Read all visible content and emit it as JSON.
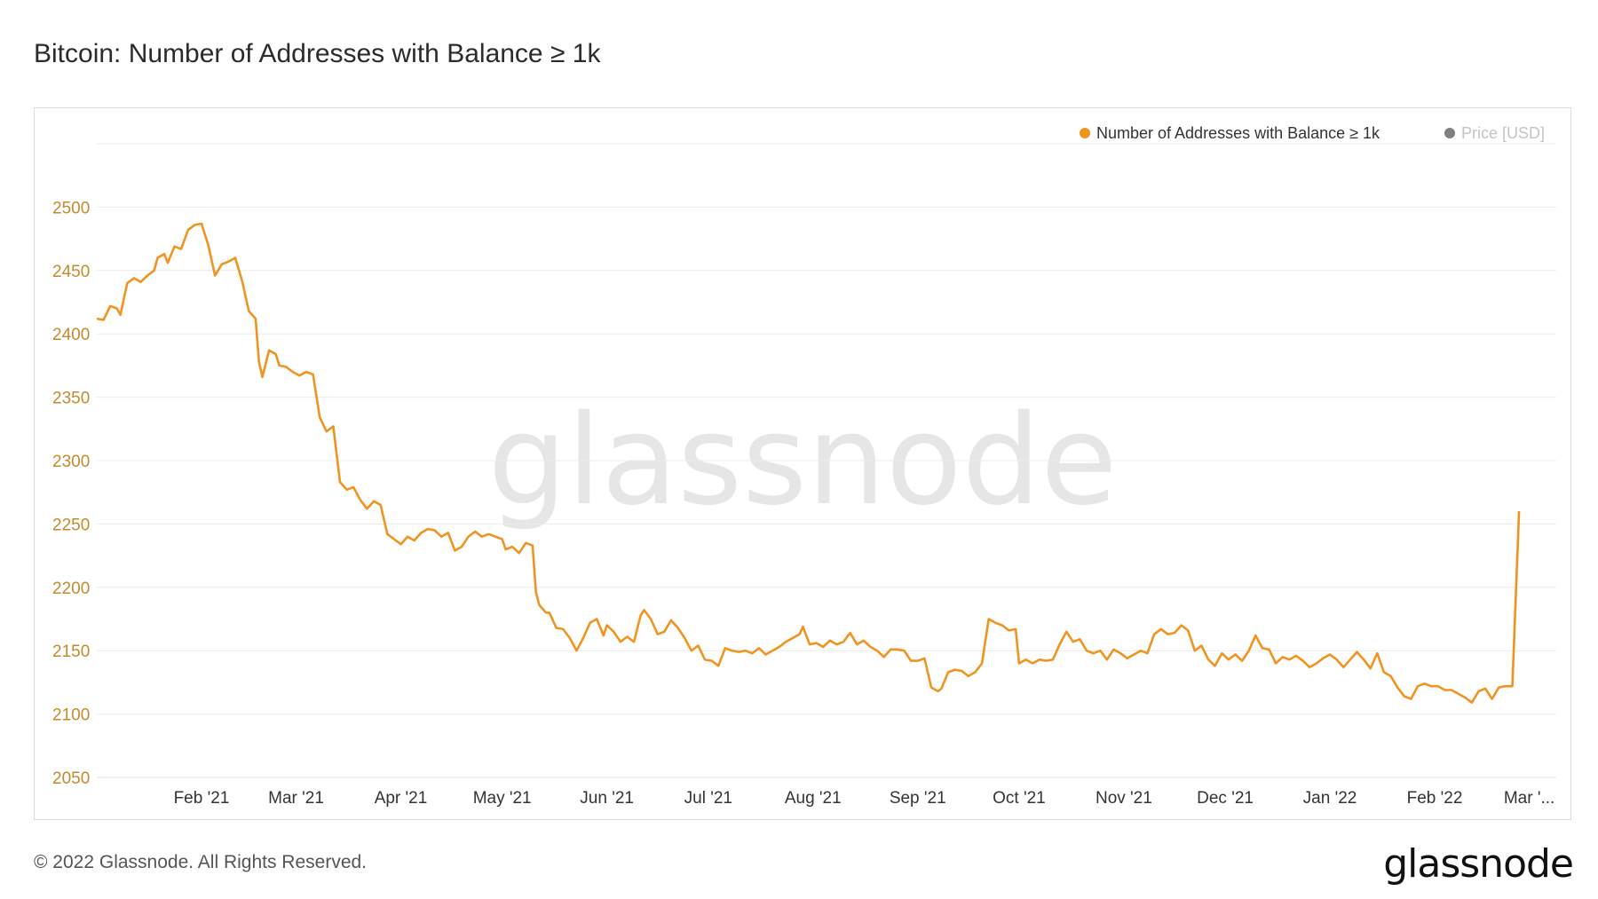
{
  "title": "Bitcoin: Number of Addresses with Balance ≥ 1k",
  "footer": {
    "copyright": "© 2022 Glassnode. All Rights Reserved.",
    "logo_text": "glassnode"
  },
  "watermark": "glassnode",
  "colors": {
    "series": "#f0931f",
    "price": "#808080",
    "ytick": "#c58a2c",
    "grid": "#ececec"
  },
  "legend": [
    {
      "label": "Number of Addresses with Balance ≥ 1k",
      "color": "#f0931f",
      "active": true
    },
    {
      "label": "Price [USD]",
      "color": "#808080",
      "active": false
    }
  ],
  "chart_data": {
    "type": "line",
    "title": "Bitcoin: Number of Addresses with Balance ≥ 1k",
    "xlabel": "",
    "ylabel": "",
    "ylim": [
      2050,
      2550
    ],
    "yticks": [
      2050,
      2100,
      2150,
      2200,
      2250,
      2300,
      2350,
      2400,
      2450,
      2500
    ],
    "xlim": [
      "2021-01-01",
      "2022-03-09"
    ],
    "xticks": [
      {
        "label": "Feb '21",
        "date": "2021-02-01"
      },
      {
        "label": "Mar '21",
        "date": "2021-03-01"
      },
      {
        "label": "Apr '21",
        "date": "2021-04-01"
      },
      {
        "label": "May '21",
        "date": "2021-05-01"
      },
      {
        "label": "Jun '21",
        "date": "2021-06-01"
      },
      {
        "label": "Jul '21",
        "date": "2021-07-01"
      },
      {
        "label": "Aug '21",
        "date": "2021-08-01"
      },
      {
        "label": "Sep '21",
        "date": "2021-09-01"
      },
      {
        "label": "Oct '21",
        "date": "2021-10-01"
      },
      {
        "label": "Nov '21",
        "date": "2021-11-01"
      },
      {
        "label": "Dec '21",
        "date": "2021-12-01"
      },
      {
        "label": "Jan '22",
        "date": "2022-01-01"
      },
      {
        "label": "Feb '22",
        "date": "2022-02-01"
      },
      {
        "label": "Mar '...",
        "date": "2022-03-01"
      }
    ],
    "grid": true,
    "legend_position": "top-right",
    "series": [
      {
        "name": "Number of Addresses with Balance ≥ 1k",
        "points": [
          [
            "2021-01-01",
            2412
          ],
          [
            "2021-01-03",
            2411
          ],
          [
            "2021-01-05",
            2422
          ],
          [
            "2021-01-07",
            2420
          ],
          [
            "2021-01-08",
            2415
          ],
          [
            "2021-01-10",
            2440
          ],
          [
            "2021-01-12",
            2444
          ],
          [
            "2021-01-14",
            2441
          ],
          [
            "2021-01-16",
            2446
          ],
          [
            "2021-01-18",
            2450
          ],
          [
            "2021-01-19",
            2460
          ],
          [
            "2021-01-21",
            2463
          ],
          [
            "2021-01-22",
            2456
          ],
          [
            "2021-01-24",
            2469
          ],
          [
            "2021-01-26",
            2467
          ],
          [
            "2021-01-28",
            2482
          ],
          [
            "2021-01-30",
            2486
          ],
          [
            "2021-02-01",
            2487
          ],
          [
            "2021-02-03",
            2470
          ],
          [
            "2021-02-05",
            2446
          ],
          [
            "2021-02-07",
            2455
          ],
          [
            "2021-02-09",
            2457
          ],
          [
            "2021-02-11",
            2460
          ],
          [
            "2021-02-13",
            2442
          ],
          [
            "2021-02-15",
            2418
          ],
          [
            "2021-02-17",
            2412
          ],
          [
            "2021-02-18",
            2378
          ],
          [
            "2021-02-19",
            2366
          ],
          [
            "2021-02-21",
            2387
          ],
          [
            "2021-02-23",
            2384
          ],
          [
            "2021-02-24",
            2375
          ],
          [
            "2021-02-26",
            2374
          ],
          [
            "2021-02-28",
            2370
          ],
          [
            "2021-03-02",
            2367
          ],
          [
            "2021-03-04",
            2370
          ],
          [
            "2021-03-06",
            2368
          ],
          [
            "2021-03-08",
            2334
          ],
          [
            "2021-03-10",
            2323
          ],
          [
            "2021-03-12",
            2327
          ],
          [
            "2021-03-14",
            2283
          ],
          [
            "2021-03-16",
            2277
          ],
          [
            "2021-03-18",
            2279
          ],
          [
            "2021-03-20",
            2269
          ],
          [
            "2021-03-22",
            2262
          ],
          [
            "2021-03-24",
            2268
          ],
          [
            "2021-03-26",
            2265
          ],
          [
            "2021-03-28",
            2242
          ],
          [
            "2021-03-30",
            2238
          ],
          [
            "2021-04-01",
            2234
          ],
          [
            "2021-04-03",
            2240
          ],
          [
            "2021-04-05",
            2237
          ],
          [
            "2021-04-07",
            2243
          ],
          [
            "2021-04-09",
            2246
          ],
          [
            "2021-04-11",
            2245
          ],
          [
            "2021-04-13",
            2240
          ],
          [
            "2021-04-15",
            2243
          ],
          [
            "2021-04-17",
            2229
          ],
          [
            "2021-04-19",
            2232
          ],
          [
            "2021-04-21",
            2240
          ],
          [
            "2021-04-23",
            2244
          ],
          [
            "2021-04-25",
            2240
          ],
          [
            "2021-04-27",
            2242
          ],
          [
            "2021-04-29",
            2240
          ],
          [
            "2021-05-01",
            2238
          ],
          [
            "2021-05-02",
            2230
          ],
          [
            "2021-05-04",
            2232
          ],
          [
            "2021-05-06",
            2227
          ],
          [
            "2021-05-08",
            2235
          ],
          [
            "2021-05-10",
            2233
          ],
          [
            "2021-05-11",
            2196
          ],
          [
            "2021-05-12",
            2186
          ],
          [
            "2021-05-14",
            2180
          ],
          [
            "2021-05-15",
            2180
          ],
          [
            "2021-05-17",
            2168
          ],
          [
            "2021-05-19",
            2167
          ],
          [
            "2021-05-21",
            2160
          ],
          [
            "2021-05-23",
            2150
          ],
          [
            "2021-05-25",
            2160
          ],
          [
            "2021-05-27",
            2172
          ],
          [
            "2021-05-29",
            2175
          ],
          [
            "2021-05-31",
            2162
          ],
          [
            "2021-06-01",
            2170
          ],
          [
            "2021-06-03",
            2165
          ],
          [
            "2021-06-05",
            2157
          ],
          [
            "2021-06-07",
            2161
          ],
          [
            "2021-06-09",
            2157
          ],
          [
            "2021-06-11",
            2178
          ],
          [
            "2021-06-12",
            2182
          ],
          [
            "2021-06-14",
            2175
          ],
          [
            "2021-06-16",
            2163
          ],
          [
            "2021-06-18",
            2165
          ],
          [
            "2021-06-20",
            2174
          ],
          [
            "2021-06-22",
            2168
          ],
          [
            "2021-06-24",
            2160
          ],
          [
            "2021-06-26",
            2150
          ],
          [
            "2021-06-28",
            2154
          ],
          [
            "2021-06-30",
            2143
          ],
          [
            "2021-07-02",
            2142
          ],
          [
            "2021-07-04",
            2138
          ],
          [
            "2021-07-06",
            2152
          ],
          [
            "2021-07-08",
            2150
          ],
          [
            "2021-07-10",
            2149
          ],
          [
            "2021-07-12",
            2150
          ],
          [
            "2021-07-14",
            2148
          ],
          [
            "2021-07-16",
            2152
          ],
          [
            "2021-07-18",
            2147
          ],
          [
            "2021-07-20",
            2150
          ],
          [
            "2021-07-22",
            2153
          ],
          [
            "2021-07-24",
            2157
          ],
          [
            "2021-07-26",
            2160
          ],
          [
            "2021-07-28",
            2163
          ],
          [
            "2021-07-29",
            2169
          ],
          [
            "2021-07-31",
            2155
          ],
          [
            "2021-08-02",
            2156
          ],
          [
            "2021-08-04",
            2153
          ],
          [
            "2021-08-06",
            2158
          ],
          [
            "2021-08-08",
            2155
          ],
          [
            "2021-08-10",
            2157
          ],
          [
            "2021-08-12",
            2164
          ],
          [
            "2021-08-14",
            2155
          ],
          [
            "2021-08-16",
            2158
          ],
          [
            "2021-08-18",
            2153
          ],
          [
            "2021-08-20",
            2150
          ],
          [
            "2021-08-22",
            2145
          ],
          [
            "2021-08-24",
            2151
          ],
          [
            "2021-08-26",
            2151
          ],
          [
            "2021-08-28",
            2150
          ],
          [
            "2021-08-30",
            2142
          ],
          [
            "2021-09-01",
            2142
          ],
          [
            "2021-09-03",
            2144
          ],
          [
            "2021-09-05",
            2121
          ],
          [
            "2021-09-07",
            2118
          ],
          [
            "2021-09-08",
            2120
          ],
          [
            "2021-09-10",
            2133
          ],
          [
            "2021-09-12",
            2135
          ],
          [
            "2021-09-14",
            2134
          ],
          [
            "2021-09-16",
            2130
          ],
          [
            "2021-09-18",
            2133
          ],
          [
            "2021-09-20",
            2140
          ],
          [
            "2021-09-22",
            2175
          ],
          [
            "2021-09-24",
            2172
          ],
          [
            "2021-09-26",
            2170
          ],
          [
            "2021-09-28",
            2166
          ],
          [
            "2021-09-30",
            2167
          ],
          [
            "2021-10-01",
            2140
          ],
          [
            "2021-10-03",
            2143
          ],
          [
            "2021-10-05",
            2140
          ],
          [
            "2021-10-07",
            2143
          ],
          [
            "2021-10-09",
            2142
          ],
          [
            "2021-10-11",
            2143
          ],
          [
            "2021-10-13",
            2155
          ],
          [
            "2021-10-15",
            2165
          ],
          [
            "2021-10-17",
            2157
          ],
          [
            "2021-10-19",
            2159
          ],
          [
            "2021-10-21",
            2150
          ],
          [
            "2021-10-23",
            2148
          ],
          [
            "2021-10-25",
            2150
          ],
          [
            "2021-10-27",
            2143
          ],
          [
            "2021-10-29",
            2151
          ],
          [
            "2021-10-31",
            2148
          ],
          [
            "2021-11-02",
            2144
          ],
          [
            "2021-11-04",
            2147
          ],
          [
            "2021-11-06",
            2150
          ],
          [
            "2021-11-08",
            2148
          ],
          [
            "2021-11-10",
            2163
          ],
          [
            "2021-11-12",
            2167
          ],
          [
            "2021-11-14",
            2163
          ],
          [
            "2021-11-16",
            2164
          ],
          [
            "2021-11-18",
            2170
          ],
          [
            "2021-11-20",
            2166
          ],
          [
            "2021-11-22",
            2150
          ],
          [
            "2021-11-24",
            2154
          ],
          [
            "2021-11-26",
            2143
          ],
          [
            "2021-11-28",
            2138
          ],
          [
            "2021-11-30",
            2148
          ],
          [
            "2021-12-02",
            2143
          ],
          [
            "2021-12-04",
            2147
          ],
          [
            "2021-12-06",
            2142
          ],
          [
            "2021-12-08",
            2150
          ],
          [
            "2021-12-10",
            2162
          ],
          [
            "2021-12-12",
            2152
          ],
          [
            "2021-12-14",
            2151
          ],
          [
            "2021-12-16",
            2140
          ],
          [
            "2021-12-18",
            2145
          ],
          [
            "2021-12-20",
            2143
          ],
          [
            "2021-12-22",
            2146
          ],
          [
            "2021-12-24",
            2142
          ],
          [
            "2021-12-26",
            2137
          ],
          [
            "2021-12-28",
            2140
          ],
          [
            "2021-12-30",
            2144
          ],
          [
            "2022-01-01",
            2147
          ],
          [
            "2022-01-03",
            2143
          ],
          [
            "2022-01-05",
            2137
          ],
          [
            "2022-01-07",
            2143
          ],
          [
            "2022-01-09",
            2149
          ],
          [
            "2022-01-11",
            2143
          ],
          [
            "2022-01-13",
            2136
          ],
          [
            "2022-01-15",
            2148
          ],
          [
            "2022-01-17",
            2133
          ],
          [
            "2022-01-19",
            2130
          ],
          [
            "2022-01-21",
            2121
          ],
          [
            "2022-01-23",
            2114
          ],
          [
            "2022-01-25",
            2112
          ],
          [
            "2022-01-27",
            2122
          ],
          [
            "2022-01-29",
            2124
          ],
          [
            "2022-01-31",
            2122
          ],
          [
            "2022-02-02",
            2122
          ],
          [
            "2022-02-04",
            2119
          ],
          [
            "2022-02-06",
            2119
          ],
          [
            "2022-02-08",
            2116
          ],
          [
            "2022-02-10",
            2113
          ],
          [
            "2022-02-12",
            2109
          ],
          [
            "2022-02-14",
            2118
          ],
          [
            "2022-02-16",
            2120
          ],
          [
            "2022-02-18",
            2112
          ],
          [
            "2022-02-20",
            2121
          ],
          [
            "2022-02-22",
            2122
          ],
          [
            "2022-02-24",
            2122
          ],
          [
            "2022-02-26",
            2260
          ]
        ]
      }
    ]
  }
}
